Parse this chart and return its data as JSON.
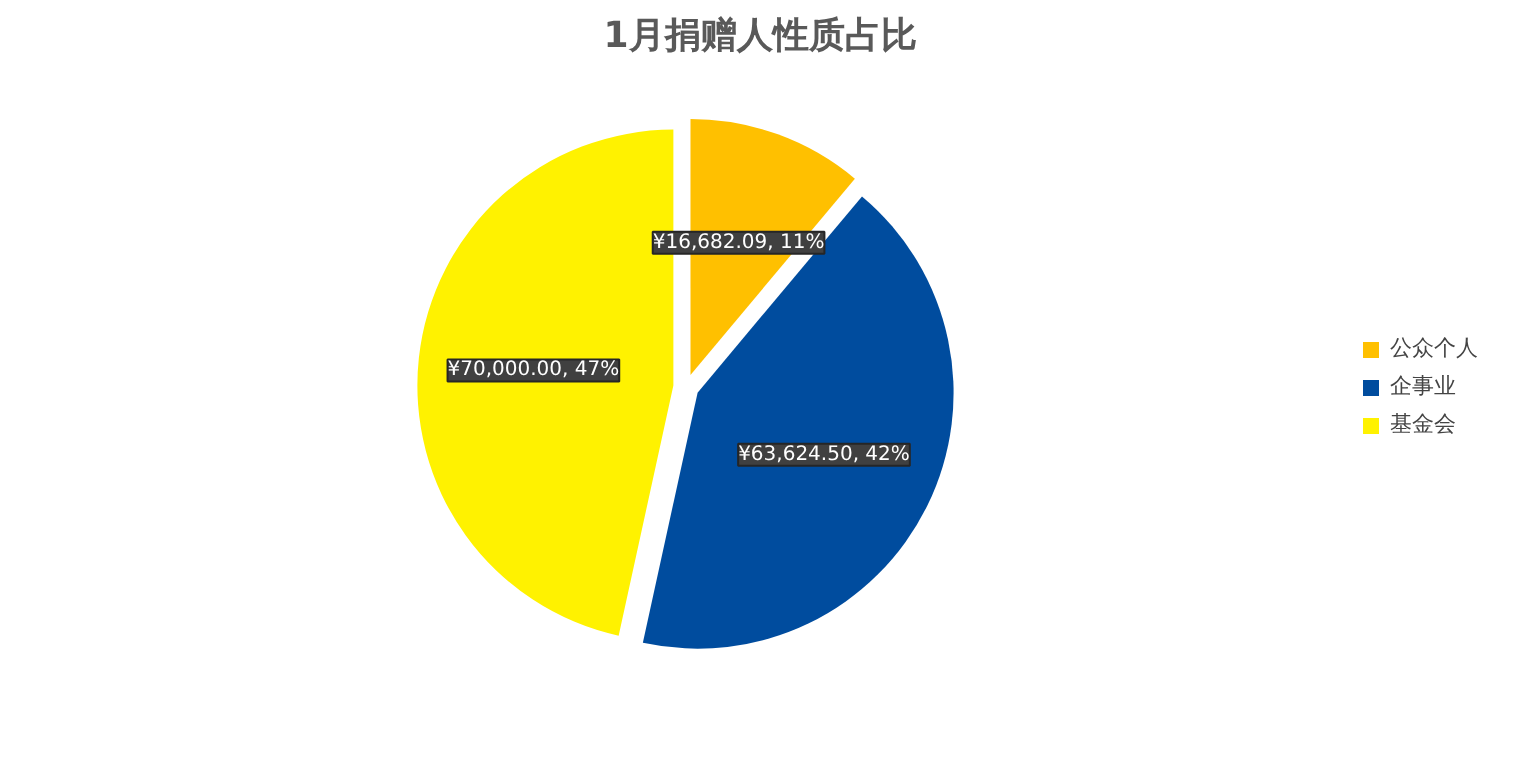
{
  "chart_data": {
    "type": "pie",
    "title": "1月捐赠人性质占比",
    "categories": [
      "公众个人",
      "企事业",
      "基金会"
    ],
    "values": [
      16682.09,
      63624.5,
      70000.0
    ],
    "colors": [
      "#ffc000",
      "#004c9e",
      "#fff200"
    ],
    "value_labels": [
      "¥16,682.09, 11%",
      "¥63,624.50, 42%",
      "¥70,000.00, 47%"
    ],
    "legend": "right"
  }
}
